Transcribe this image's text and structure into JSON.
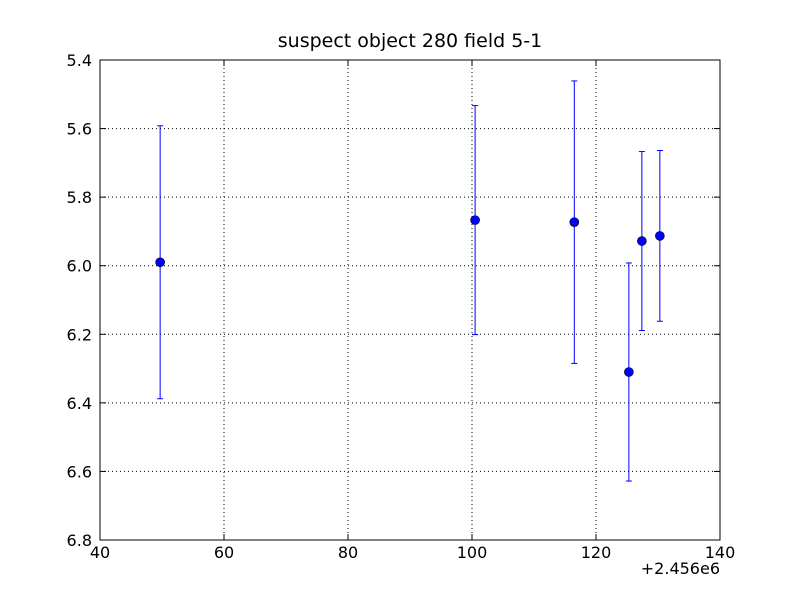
{
  "chart_data": {
    "type": "errorbar",
    "title": "suspect object 280 field 5-1",
    "x_offset_label": "+2.456e6",
    "x": [
      49.7,
      100.5,
      116.5,
      125.3,
      127.4,
      130.3
    ],
    "series": [
      {
        "color": "#0000ff",
        "values": [
          5.99,
          5.867,
          5.873,
          6.31,
          5.928,
          5.913
        ],
        "errors": [
          0.398,
          0.334,
          0.412,
          0.318,
          0.261,
          0.249
        ]
      }
    ],
    "xlim": [
      40,
      140
    ],
    "xticks": [
      40,
      60,
      80,
      100,
      120,
      140
    ],
    "ylim": [
      6.8,
      5.4
    ],
    "yticks": [
      5.4,
      5.6,
      5.8,
      {
        "value": 6,
        "label": "6.0"
      },
      6.2,
      6.4,
      6.6,
      6.8
    ],
    "grid": true
  }
}
